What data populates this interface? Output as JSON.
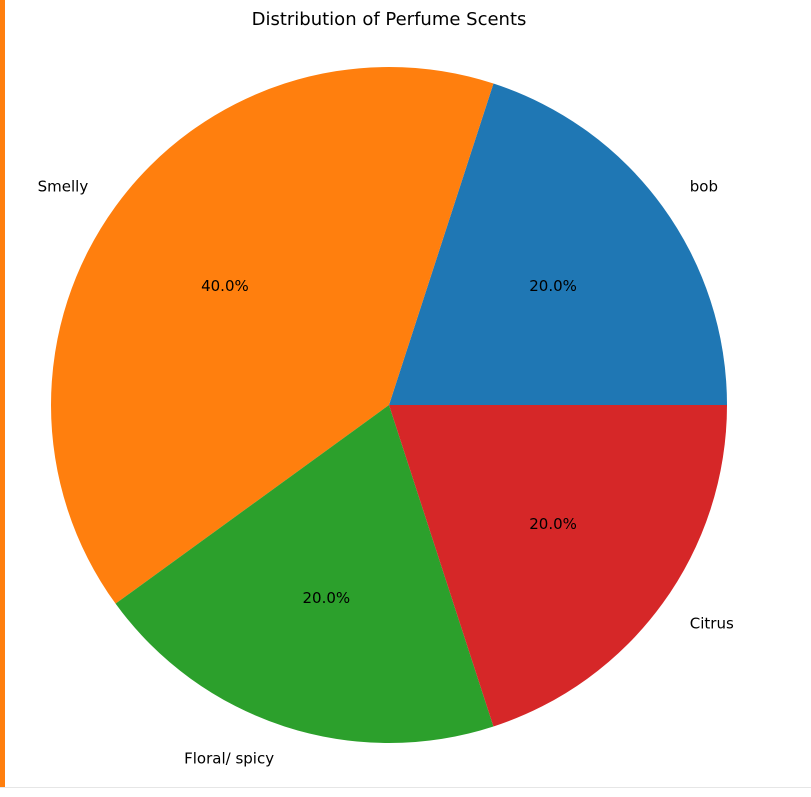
{
  "chart_data": {
    "type": "pie",
    "title": "Distribution of Perfume Scents",
    "categories": [
      "bob",
      "Smelly",
      "Floral/ spicy",
      "Citrus"
    ],
    "values": [
      20,
      40,
      20,
      20
    ],
    "percent_labels": [
      "20.0%",
      "40.0%",
      "20.0%",
      "20.0%"
    ],
    "colors": [
      "#1f77b4",
      "#ff7f0e",
      "#2ca02c",
      "#d62728"
    ],
    "start_angle_deg": 0,
    "direction": "counterclockwise"
  }
}
